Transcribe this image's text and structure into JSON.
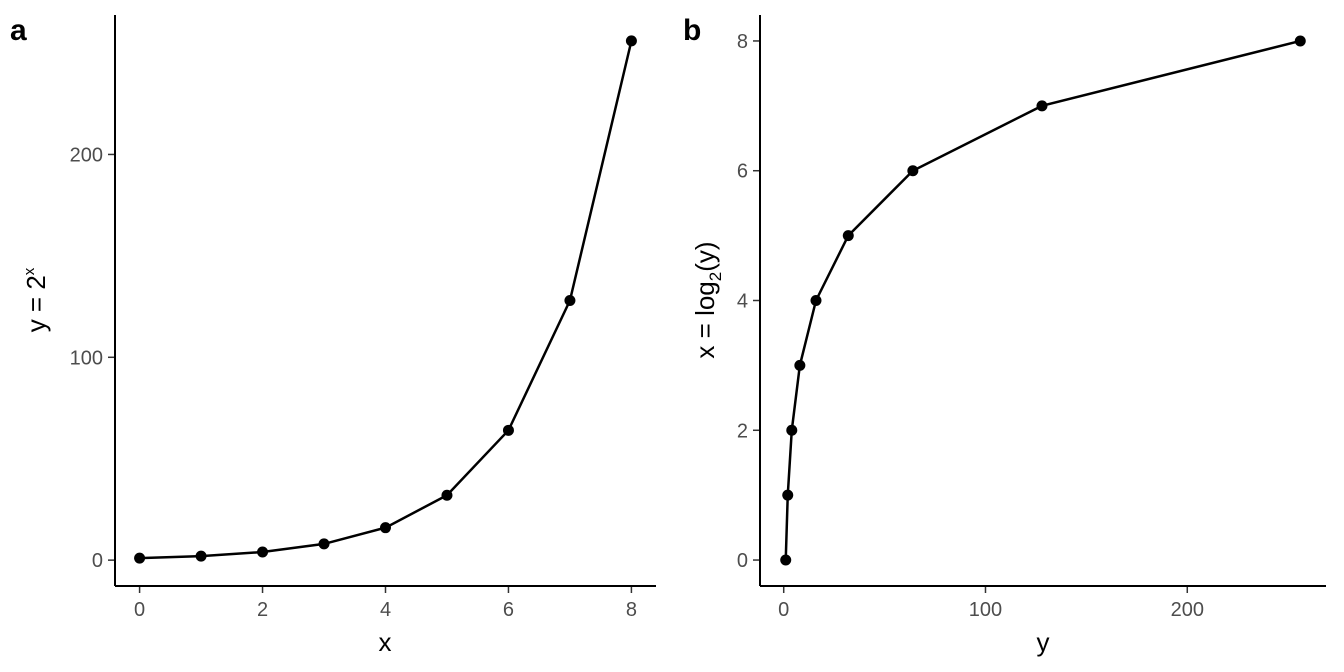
{
  "chart_data": [
    {
      "type": "line",
      "panel_tag": "a",
      "xlabel": "x",
      "ylabel": {
        "base": "y = 2",
        "sup": "x"
      },
      "x": [
        0,
        1,
        2,
        3,
        4,
        5,
        6,
        7,
        8
      ],
      "y": [
        1,
        2,
        4,
        8,
        16,
        32,
        64,
        128,
        256
      ],
      "xlim": [
        -0.4,
        8.4
      ],
      "ylim": [
        -12.75,
        268.75
      ],
      "xticks": [
        0,
        2,
        4,
        6,
        8
      ],
      "yticks": [
        0,
        100,
        200
      ],
      "grid": false
    },
    {
      "type": "line",
      "panel_tag": "b",
      "xlabel": "y",
      "ylabel": {
        "base": "x = log",
        "sub": "2",
        "tail": "(y)"
      },
      "x": [
        1,
        2,
        4,
        8,
        16,
        32,
        64,
        128,
        256
      ],
      "y": [
        0,
        1,
        2,
        3,
        4,
        5,
        6,
        7,
        8
      ],
      "xlim": [
        -11.75,
        268.75
      ],
      "ylim": [
        -0.4,
        8.4
      ],
      "xticks": [
        0,
        100,
        200
      ],
      "yticks": [
        0,
        2,
        4,
        6,
        8
      ],
      "grid": false
    }
  ]
}
